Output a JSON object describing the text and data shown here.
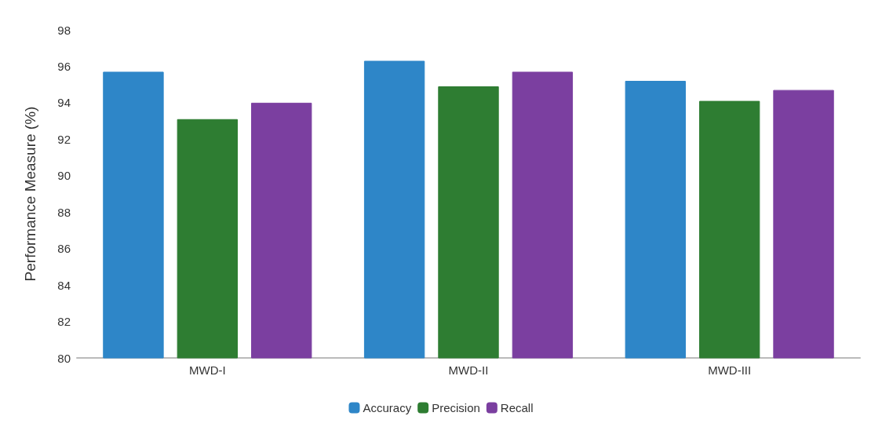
{
  "chart_data": {
    "type": "bar",
    "ylabel": "Performance Measure (%)",
    "categories": [
      "MWD-I",
      "MWD-II",
      "MWD-III"
    ],
    "series": [
      {
        "name": "Accuracy",
        "color": "#2e86c8",
        "values": [
          95.7,
          96.3,
          95.2
        ]
      },
      {
        "name": "Precision",
        "color": "#2e7d32",
        "values": [
          93.1,
          94.9,
          94.1
        ]
      },
      {
        "name": "Recall",
        "color": "#7b3fa0",
        "values": [
          94.0,
          95.7,
          94.7
        ]
      }
    ],
    "ylim": [
      80,
      98
    ],
    "yticks": [
      80,
      82,
      84,
      86,
      88,
      90,
      92,
      94,
      96,
      98
    ],
    "grid": false,
    "legend": "bottom"
  }
}
